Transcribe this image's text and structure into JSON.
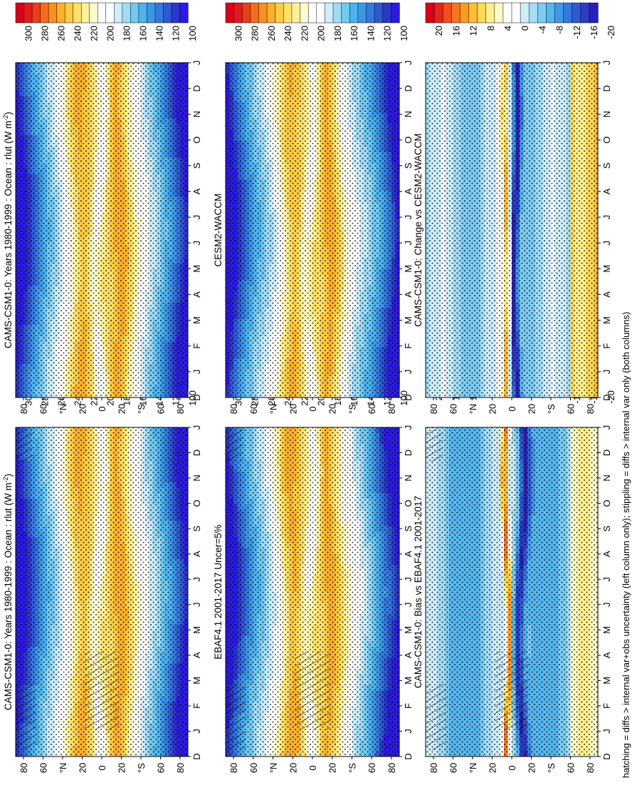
{
  "figure": {
    "footnote": "hatching = diffs > internal var+obs uncertainty (left column only); stippling = diffs > internal var only (both columns)",
    "orientation": "rotated-90-clockwise"
  },
  "colors": {
    "abs_scale": [
      "#d9001a",
      "#e31a1c",
      "#ee3d1a",
      "#f46d1e",
      "#f9901f",
      "#fbb02d",
      "#fdcc43",
      "#fee16a",
      "#fff199",
      "#fffbd0",
      "#ffffff",
      "#ffffff",
      "#cfeefc",
      "#a1dcf7",
      "#72c9f2",
      "#4cb3ee",
      "#3c98e6",
      "#3579de",
      "#2f59d4",
      "#2a37c8",
      "#2b1be0"
    ],
    "diff_scale": [
      "#d9001a",
      "#e8231a",
      "#f24d1c",
      "#f6761f",
      "#f99d22",
      "#fbbe34",
      "#fdd95a",
      "#fff08e",
      "#fffbc7",
      "#ffffff",
      "#ffffff",
      "#cfeefc",
      "#a5ddf7",
      "#7ccbf2",
      "#56b6ee",
      "#4198e6",
      "#3479dc",
      "#2f5ad2",
      "#2b3cc8",
      "#2a20b5"
    ]
  },
  "chart_data": [
    {
      "type": "heatmap",
      "panel": "top-left",
      "title": "CAMS-CSM1-0: Years 1980-1999 : Ocean : rlut (W m",
      "title_sup": "-2",
      "title_end": ")",
      "field": "model_a",
      "hatching": true,
      "stippling": true,
      "x_ticks": [
        "D",
        "J",
        "F",
        "M",
        "A",
        "M",
        "J",
        "J",
        "A",
        "S",
        "O",
        "N",
        "D",
        "J"
      ],
      "y_ticks": [
        "80",
        "60",
        "°N",
        "20",
        "0",
        "20",
        "°S",
        "60",
        "80"
      ],
      "colorbar_ticks": [
        "300",
        "280",
        "260",
        "240",
        "220",
        "200",
        "180",
        "160",
        "140",
        "120",
        "100"
      ],
      "value_range": [
        90,
        310
      ],
      "units": "W m-2"
    },
    {
      "type": "heatmap",
      "panel": "top-right",
      "title": "CAMS-CSM1-0: Years 1980-1999 : Ocean : rlut (W m",
      "title_sup": "-2",
      "title_end": ")",
      "field": "model_a",
      "hatching": false,
      "stippling": true,
      "x_ticks": [
        "D",
        "J",
        "F",
        "M",
        "A",
        "M",
        "J",
        "J",
        "A",
        "S",
        "O",
        "N",
        "D",
        "J"
      ],
      "y_ticks": [
        "80",
        "60",
        "°N",
        "20",
        "0",
        "20",
        "°S",
        "60",
        "80"
      ],
      "colorbar_ticks": [
        "300",
        "280",
        "260",
        "240",
        "220",
        "200",
        "180",
        "160",
        "140",
        "120",
        "100"
      ],
      "value_range": [
        90,
        310
      ],
      "units": "W m-2"
    },
    {
      "type": "heatmap",
      "panel": "middle-left",
      "title": "EBAF4.1 2001-2017 Uncer=5%",
      "field": "obs",
      "hatching": true,
      "stippling": true,
      "x_ticks": [
        "D",
        "J",
        "F",
        "M",
        "A",
        "M",
        "J",
        "J",
        "A",
        "S",
        "O",
        "N",
        "D",
        "J"
      ],
      "y_ticks": [
        "80",
        "60",
        "°N",
        "20",
        "0",
        "20",
        "°S",
        "60",
        "80"
      ],
      "colorbar_ticks": [
        "300",
        "280",
        "260",
        "240",
        "220",
        "200",
        "180",
        "160",
        "140",
        "120",
        "100"
      ],
      "value_range": [
        90,
        310
      ],
      "units": "W m-2"
    },
    {
      "type": "heatmap",
      "panel": "middle-right",
      "title": "CESM2-WACCM",
      "field": "model_b",
      "hatching": false,
      "stippling": true,
      "x_ticks": [
        "D",
        "J",
        "F",
        "M",
        "A",
        "M",
        "J",
        "J",
        "A",
        "S",
        "O",
        "N",
        "D",
        "J"
      ],
      "y_ticks": [
        "80",
        "60",
        "°N",
        "20",
        "0",
        "20",
        "°S",
        "60",
        "80"
      ],
      "colorbar_ticks": [
        "300",
        "280",
        "260",
        "240",
        "220",
        "200",
        "180",
        "160",
        "140",
        "120",
        "100"
      ],
      "value_range": [
        90,
        310
      ],
      "units": "W m-2"
    },
    {
      "type": "heatmap",
      "panel": "bottom-left",
      "title": "CAMS-CSM1-0: Bias vs EBAF4.1 2001-2017",
      "field": "bias",
      "hatching": true,
      "stippling": true,
      "x_ticks": [
        "D",
        "J",
        "F",
        "M",
        "A",
        "M",
        "J",
        "J",
        "A",
        "S",
        "O",
        "N",
        "D",
        "J"
      ],
      "y_ticks": [
        "80",
        "60",
        "°N",
        "20",
        "0",
        "20",
        "°S",
        "60",
        "80"
      ],
      "colorbar_ticks": [
        "20",
        "16",
        "12",
        "8",
        "4",
        "0",
        "-4",
        "-8",
        "-12",
        "-16",
        "-20"
      ],
      "value_range": [
        -22,
        22
      ],
      "units": "W m-2"
    },
    {
      "type": "heatmap",
      "panel": "bottom-right",
      "title": "CAMS-CSM1-0: Change vs CESM2-WACCM",
      "field": "change",
      "hatching": false,
      "stippling": true,
      "x_ticks": [
        "D",
        "J",
        "F",
        "M",
        "A",
        "M",
        "J",
        "J",
        "A",
        "S",
        "O",
        "N",
        "D",
        "J"
      ],
      "y_ticks": [
        "80",
        "60",
        "°N",
        "20",
        "0",
        "20",
        "°S",
        "60",
        "80"
      ],
      "colorbar_ticks": [
        "20",
        "16",
        "12",
        "8",
        "4",
        "0",
        "-4",
        "-8",
        "-12",
        "-16",
        "-20"
      ],
      "value_range": [
        -22,
        22
      ],
      "units": "W m-2"
    }
  ]
}
